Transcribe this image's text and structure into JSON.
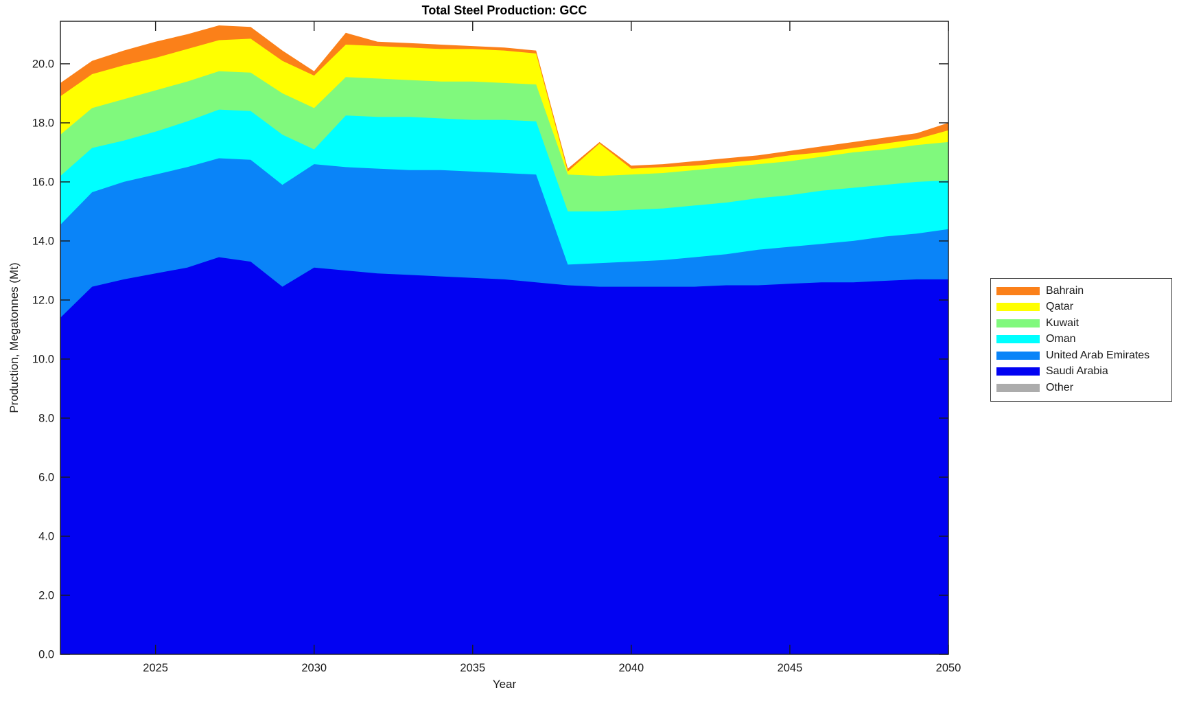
{
  "figure": {
    "title": "Total Steel Production: GCC",
    "xlabel": "Year",
    "ylabel": "Production, Megatonnes (Mt)"
  },
  "legend": {
    "items": [
      {
        "label": "Bahrain",
        "color": "#FB8019"
      },
      {
        "label": "Qatar",
        "color": "#FFFF00"
      },
      {
        "label": "Kuwait",
        "color": "#80F97D"
      },
      {
        "label": "Oman",
        "color": "#00FFFF"
      },
      {
        "label": "United Arab Emirates",
        "color": "#0A84F8"
      },
      {
        "label": "Saudi Arabia",
        "color": "#0202F2"
      },
      {
        "label": "Other",
        "color": "#ACACAC"
      }
    ]
  },
  "chart_data": {
    "type": "area",
    "stacked": true,
    "title": "Total Steel Production: GCC",
    "xlabel": "Year",
    "ylabel": "Production, Megatonnes (Mt)",
    "x": [
      2022,
      2023,
      2024,
      2025,
      2026,
      2027,
      2028,
      2029,
      2030,
      2031,
      2032,
      2033,
      2034,
      2035,
      2036,
      2037,
      2038,
      2039,
      2040,
      2041,
      2042,
      2043,
      2044,
      2045,
      2046,
      2047,
      2048,
      2049,
      2050
    ],
    "series": [
      {
        "name": "Other",
        "color": "#ACACAC",
        "values": [
          0,
          0,
          0,
          0,
          0,
          0,
          0,
          0,
          0,
          0,
          0,
          0,
          0,
          0,
          0,
          0,
          0,
          0,
          0,
          0,
          0,
          0,
          0,
          0,
          0,
          0,
          0,
          0,
          0
        ]
      },
      {
        "name": "Saudi Arabia",
        "color": "#0202F2",
        "values": [
          11.4,
          12.45,
          12.7,
          12.9,
          13.1,
          13.45,
          13.3,
          12.45,
          13.1,
          13.0,
          12.9,
          12.85,
          12.8,
          12.75,
          12.7,
          12.6,
          12.5,
          12.45,
          12.45,
          12.45,
          12.45,
          12.5,
          12.5,
          12.55,
          12.6,
          12.6,
          12.65,
          12.7,
          12.7
        ]
      },
      {
        "name": "United Arab Emirates",
        "color": "#0A84F8",
        "values": [
          3.15,
          3.2,
          3.3,
          3.35,
          3.4,
          3.35,
          3.45,
          3.45,
          3.5,
          3.5,
          3.55,
          3.55,
          3.6,
          3.6,
          3.6,
          3.65,
          0.7,
          0.8,
          0.85,
          0.9,
          1.0,
          1.05,
          1.2,
          1.25,
          1.3,
          1.4,
          1.5,
          1.55,
          1.7
        ]
      },
      {
        "name": "Oman",
        "color": "#00FFFF",
        "values": [
          1.65,
          1.5,
          1.4,
          1.45,
          1.55,
          1.65,
          1.65,
          1.7,
          0.5,
          1.75,
          1.75,
          1.8,
          1.75,
          1.75,
          1.8,
          1.8,
          1.8,
          1.75,
          1.75,
          1.75,
          1.75,
          1.75,
          1.75,
          1.75,
          1.8,
          1.8,
          1.75,
          1.75,
          1.65
        ]
      },
      {
        "name": "Kuwait",
        "color": "#80F97D",
        "values": [
          1.4,
          1.35,
          1.4,
          1.4,
          1.35,
          1.3,
          1.3,
          1.4,
          1.4,
          1.3,
          1.3,
          1.25,
          1.25,
          1.3,
          1.25,
          1.25,
          1.25,
          1.2,
          1.2,
          1.2,
          1.2,
          1.2,
          1.15,
          1.15,
          1.15,
          1.2,
          1.2,
          1.25,
          1.3
        ]
      },
      {
        "name": "Qatar",
        "color": "#FFFF00",
        "values": [
          1.3,
          1.15,
          1.15,
          1.1,
          1.1,
          1.05,
          1.15,
          1.1,
          1.1,
          1.1,
          1.1,
          1.1,
          1.1,
          1.1,
          1.1,
          1.05,
          0.1,
          1.1,
          0.2,
          0.2,
          0.15,
          0.15,
          0.15,
          0.2,
          0.15,
          0.15,
          0.2,
          0.2,
          0.4
        ]
      },
      {
        "name": "Bahrain",
        "color": "#FB8019",
        "values": [
          0.45,
          0.45,
          0.5,
          0.55,
          0.5,
          0.5,
          0.4,
          0.35,
          0.15,
          0.4,
          0.15,
          0.15,
          0.15,
          0.1,
          0.1,
          0.1,
          0.1,
          0.05,
          0.1,
          0.1,
          0.15,
          0.15,
          0.15,
          0.15,
          0.2,
          0.2,
          0.2,
          0.2,
          0.25
        ]
      }
    ],
    "totals_by_year_note": "stacked totals range from about 16.45 (2038) to 21.3 (2027)",
    "xlim": [
      2022,
      2050
    ],
    "ylim": [
      0,
      21.44
    ],
    "xticks": [
      2025,
      2030,
      2035,
      2040,
      2045,
      2050
    ],
    "xtick_labels": [
      "2025",
      "2030",
      "2035",
      "2040",
      "2045",
      "2050"
    ],
    "yticks": [
      0,
      2,
      4,
      6,
      8,
      10,
      12,
      14,
      16,
      18,
      20
    ],
    "ytick_labels": [
      "0.0",
      "2.0",
      "4.0",
      "6.0",
      "8.0",
      "10.0",
      "12.0",
      "14.0",
      "16.0",
      "18.0",
      "20.0"
    ],
    "grid": false,
    "legend_position": "outside-right",
    "legend_order_top_to_bottom": [
      "Bahrain",
      "Qatar",
      "Kuwait",
      "Oman",
      "United Arab Emirates",
      "Saudi Arabia",
      "Other"
    ],
    "axis_color": "#1a1a1a"
  }
}
